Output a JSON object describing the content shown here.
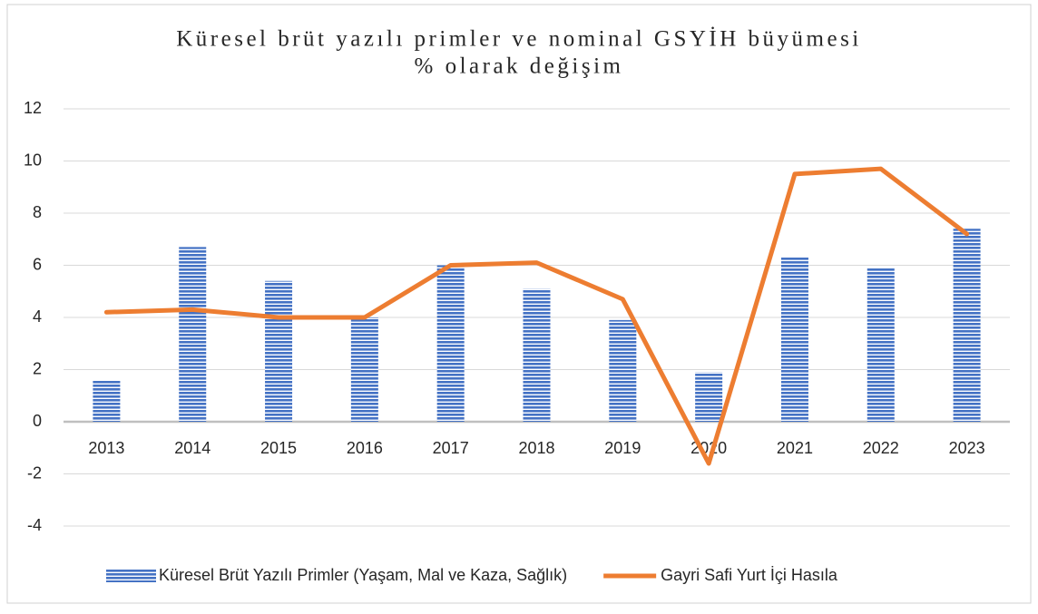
{
  "chart_data": {
    "type": "bar",
    "title": [
      "Küresel brüt yazılı primler ve nominal GSYİH büyümesi",
      "% olarak değişim"
    ],
    "categories": [
      "2013",
      "2014",
      "2015",
      "2016",
      "2017",
      "2018",
      "2019",
      "2020",
      "2021",
      "2022",
      "2023"
    ],
    "series": [
      {
        "name": "Küresel Brüt Yazılı Primler (Yaşam, Mal ve Kaza, Sağlık)",
        "type": "bar",
        "color": "#4472c4",
        "values": [
          1.6,
          6.7,
          5.4,
          4.0,
          6.0,
          5.1,
          3.9,
          1.9,
          6.3,
          5.9,
          7.4
        ]
      },
      {
        "name": "Gayri Safi Yurt İçi Hasıla",
        "type": "line",
        "color": "#ed7d31",
        "values": [
          4.2,
          4.3,
          4.0,
          4.0,
          6.0,
          6.1,
          4.7,
          -1.6,
          9.5,
          9.7,
          7.2
        ]
      }
    ],
    "ylim": [
      -4,
      12
    ],
    "yticks": [
      -4,
      -2,
      0,
      2,
      4,
      6,
      8,
      10,
      12
    ],
    "grid": true,
    "legend": "bottom"
  }
}
